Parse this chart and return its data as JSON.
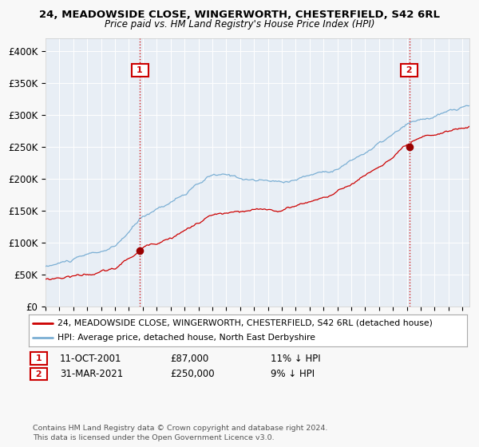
{
  "title": "24, MEADOWSIDE CLOSE, WINGERWORTH, CHESTERFIELD, S42 6RL",
  "subtitle": "Price paid vs. HM Land Registry's House Price Index (HPI)",
  "legend_line1": "24, MEADOWSIDE CLOSE, WINGERWORTH, CHESTERFIELD, S42 6RL (detached house)",
  "legend_line2": "HPI: Average price, detached house, North East Derbyshire",
  "sale1_label": "11-OCT-2001",
  "sale1_price": 87000,
  "sale1_price_str": "£87,000",
  "sale1_hpi_diff": "11% ↓ HPI",
  "sale2_label": "31-MAR-2021",
  "sale2_price": 250000,
  "sale2_price_str": "£250,000",
  "sale2_hpi_diff": "9% ↓ HPI",
  "hpi_color": "#7bafd4",
  "price_color": "#cc0000",
  "dot_color": "#990000",
  "vline1_color": "#cc0000",
  "vline2_color": "#cc0000",
  "fig_bg": "#f8f8f8",
  "plot_bg": "#e8eef5",
  "grid_color": "#ffffff",
  "legend_border": "#aaaaaa",
  "footnote": "Contains HM Land Registry data © Crown copyright and database right 2024.\nThis data is licensed under the Open Government Licence v3.0.",
  "ylim": [
    0,
    420000
  ],
  "yticks": [
    0,
    50000,
    100000,
    150000,
    200000,
    250000,
    300000,
    350000,
    400000
  ],
  "ytick_labels": [
    "£0",
    "£50K",
    "£100K",
    "£150K",
    "£200K",
    "£250K",
    "£300K",
    "£350K",
    "£400K"
  ],
  "xstart": 1995.0,
  "xend": 2025.5,
  "sale1_x": 2001.792,
  "sale2_x": 2021.167
}
